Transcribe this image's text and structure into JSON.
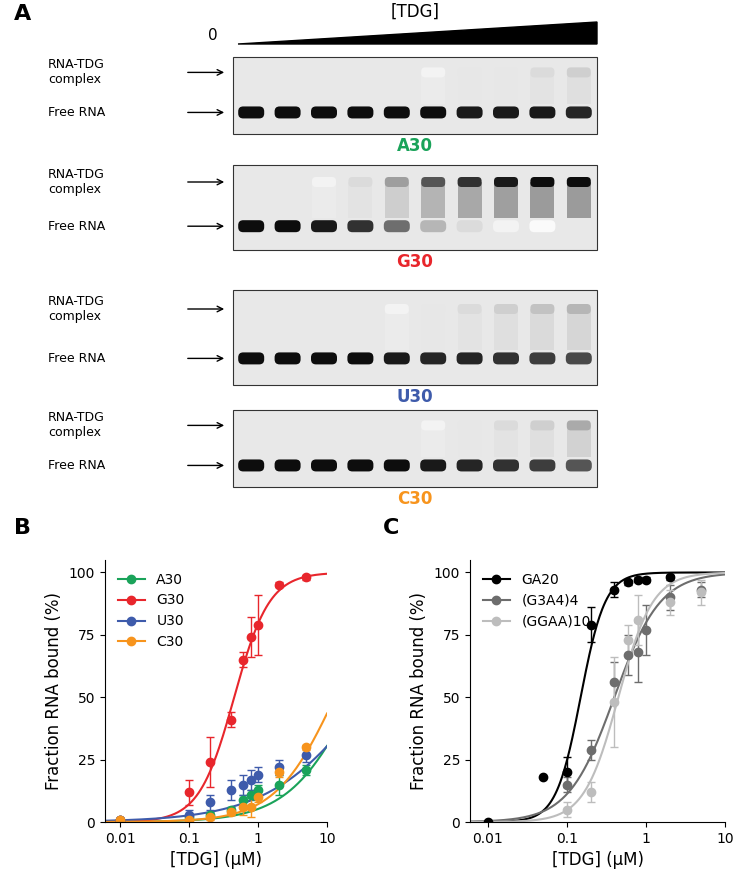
{
  "panel_labels": [
    "A",
    "B",
    "C"
  ],
  "gel": {
    "titrant_label": "[TDG]",
    "zero_label": "0",
    "band_labels": {
      "complex": "RNA-TDG complex",
      "free": "Free RNA"
    },
    "gels": [
      {
        "name": "A30",
        "color": "#1aa35a",
        "complex_band": [
          0,
          0,
          0,
          0,
          0,
          0.05,
          0.1,
          0.1,
          0.15,
          0.2
        ],
        "free_band": [
          1,
          1,
          1,
          1,
          1,
          1,
          0.95,
          0.95,
          0.95,
          0.9
        ]
      },
      {
        "name": "G30",
        "color": "#e8262c",
        "complex_band": [
          0,
          0,
          0.05,
          0.15,
          0.4,
          0.7,
          0.85,
          0.95,
          1,
          1
        ],
        "free_band": [
          1,
          1,
          0.95,
          0.85,
          0.6,
          0.3,
          0.15,
          0.05,
          0.02,
          0
        ]
      },
      {
        "name": "U30",
        "color": "#3e5bab",
        "complex_band": [
          0,
          0,
          0,
          0,
          0.05,
          0.1,
          0.15,
          0.2,
          0.25,
          0.3
        ],
        "free_band": [
          1,
          1,
          1,
          1,
          0.95,
          0.9,
          0.9,
          0.85,
          0.8,
          0.75
        ]
      },
      {
        "name": "C30",
        "color": "#f7941d",
        "complex_band": [
          0,
          0,
          0,
          0,
          0,
          0.05,
          0.1,
          0.15,
          0.2,
          0.35
        ],
        "free_band": [
          1,
          1,
          1,
          1,
          1,
          0.95,
          0.9,
          0.85,
          0.8,
          0.7
        ]
      }
    ]
  },
  "chart_data": [
    {
      "type": "scatter",
      "log": "x",
      "xlabel": "[TDG] (μM)",
      "ylabel": "Fraction RNA bound (%)",
      "xlim": [
        0.006,
        10
      ],
      "xticks": [
        0.01,
        0.1,
        1,
        10
      ],
      "ylim": [
        0,
        105
      ],
      "yticks": [
        0,
        25,
        50,
        75,
        100
      ],
      "legend": "upper left",
      "marker": "o",
      "series": [
        {
          "name": "A30",
          "color": "#1aa35a",
          "x": [
            0.01,
            0.1,
            0.2,
            0.4,
            0.6,
            0.8,
            1,
            2,
            5
          ],
          "values": [
            1,
            2,
            3,
            5,
            9,
            11,
            13,
            15,
            21
          ],
          "errors": [
            0,
            1,
            1,
            1,
            2,
            2,
            2,
            4,
            2
          ],
          "fit": {
            "bmax": 100,
            "kd": 25,
            "n": 0.9
          }
        },
        {
          "name": "G30",
          "color": "#e8262c",
          "x": [
            0.01,
            0.1,
            0.2,
            0.4,
            0.6,
            0.8,
            1,
            2,
            5
          ],
          "values": [
            1,
            12,
            24,
            41,
            65,
            74,
            79,
            95,
            98
          ],
          "errors": [
            0,
            5,
            10,
            3,
            3,
            8,
            12,
            1,
            1
          ],
          "fit": {
            "bmax": 100,
            "kd": 0.45,
            "n": 1.7
          }
        },
        {
          "name": "U30",
          "color": "#3e5bab",
          "x": [
            0.01,
            0.1,
            0.2,
            0.4,
            0.6,
            0.8,
            1,
            2,
            5
          ],
          "values": [
            1,
            3,
            8,
            13,
            15,
            17,
            19,
            22,
            27
          ],
          "errors": [
            0,
            2,
            3,
            4,
            4,
            4,
            3,
            3,
            3
          ],
          "fit": {
            "bmax": 100,
            "kd": 40,
            "n": 0.6
          }
        },
        {
          "name": "C30",
          "color": "#f7941d",
          "x": [
            0.01,
            0.1,
            0.2,
            0.4,
            0.6,
            0.8,
            1,
            2,
            5
          ],
          "values": [
            1,
            1,
            2,
            4,
            6,
            6,
            10,
            20,
            30
          ],
          "errors": [
            0,
            1,
            1,
            1,
            3,
            4,
            2,
            2,
            1
          ],
          "fit": {
            "bmax": 100,
            "kd": 13,
            "n": 1.0
          }
        }
      ]
    },
    {
      "type": "scatter",
      "log": "x",
      "xlabel": "[TDG] (μM)",
      "ylabel": "Fraction RNA bound (%)",
      "xlim": [
        0.006,
        10
      ],
      "xticks": [
        0.01,
        0.1,
        1,
        10
      ],
      "ylim": [
        0,
        105
      ],
      "yticks": [
        0,
        25,
        50,
        75,
        100
      ],
      "legend": "upper left",
      "marker": "o",
      "series": [
        {
          "name": "GA20",
          "color": "#000000",
          "x": [
            0.01,
            0.05,
            0.1,
            0.2,
            0.4,
            0.6,
            0.8,
            1,
            2
          ],
          "values": [
            0,
            18,
            20,
            79,
            93,
            96,
            97,
            97,
            98
          ],
          "errors": [
            0,
            0,
            6,
            7,
            3,
            1,
            1,
            1,
            1
          ],
          "fit": {
            "bmax": 100,
            "kd": 0.15,
            "n": 2.8
          }
        },
        {
          "name": "(G3A4)4",
          "color": "#6d6d6d",
          "x": [
            0.1,
            0.2,
            0.4,
            0.6,
            0.8,
            1,
            2,
            5
          ],
          "values": [
            15,
            29,
            56,
            67,
            68,
            77,
            90,
            93
          ],
          "errors": [
            3,
            4,
            8,
            8,
            12,
            10,
            5,
            3
          ],
          "fit": {
            "bmax": 100,
            "kd": 0.4,
            "n": 1.5
          }
        },
        {
          "name": "(GGAA)10",
          "color": "#bdbdbd",
          "x": [
            0.1,
            0.2,
            0.4,
            0.6,
            0.8,
            2,
            5
          ],
          "values": [
            5,
            12,
            48,
            73,
            81,
            88,
            92
          ],
          "errors": [
            3,
            4,
            18,
            6,
            10,
            5,
            5
          ],
          "fit": {
            "bmax": 100,
            "kd": 0.45,
            "n": 2.0
          }
        }
      ]
    }
  ]
}
